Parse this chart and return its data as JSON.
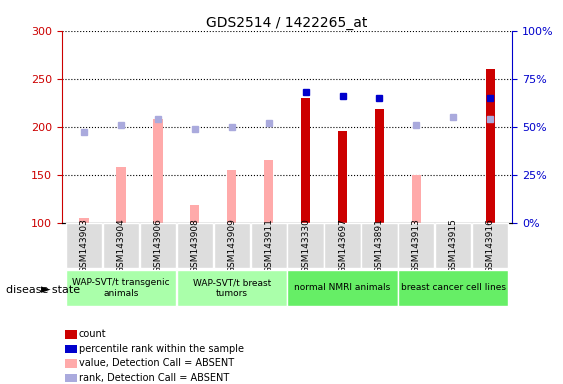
{
  "title": "GDS2514 / 1422265_at",
  "samples": [
    "GSM143903",
    "GSM143904",
    "GSM143906",
    "GSM143908",
    "GSM143909",
    "GSM143911",
    "GSM143330",
    "GSM143697",
    "GSM143891",
    "GSM143913",
    "GSM143915",
    "GSM143916"
  ],
  "count_values": [
    null,
    null,
    null,
    null,
    null,
    null,
    230,
    196,
    218,
    null,
    null,
    260
  ],
  "count_absent": [
    105,
    158,
    208,
    118,
    155,
    165,
    null,
    null,
    null,
    150,
    null,
    null
  ],
  "percentile_values": [
    null,
    null,
    null,
    null,
    null,
    null,
    68,
    66,
    65,
    null,
    null,
    65
  ],
  "percentile_absent": [
    47,
    51,
    54,
    49,
    50,
    52,
    null,
    null,
    null,
    51,
    55,
    54
  ],
  "group_spans": [
    {
      "label": "WAP-SVT/t transgenic\nanimals",
      "start": 0,
      "end": 2,
      "color": "#aaffaa"
    },
    {
      "label": "WAP-SVT/t breast\ntumors",
      "start": 3,
      "end": 5,
      "color": "#aaffaa"
    },
    {
      "label": "normal NMRI animals",
      "start": 6,
      "end": 8,
      "color": "#66ee66"
    },
    {
      "label": "breast cancer cell lines",
      "start": 9,
      "end": 11,
      "color": "#66ee66"
    }
  ],
  "ylim_left": [
    100,
    300
  ],
  "ylim_right": [
    0,
    100
  ],
  "yticks_left": [
    100,
    150,
    200,
    250,
    300
  ],
  "yticks_right": [
    0,
    25,
    50,
    75,
    100
  ],
  "color_count": "#cc0000",
  "color_percentile": "#0000cc",
  "color_absent_value": "#ffaaaa",
  "color_absent_rank": "#aaaadd",
  "bar_width": 0.25,
  "legend_items": [
    {
      "label": "count",
      "color": "#cc0000"
    },
    {
      "label": "percentile rank within the sample",
      "color": "#0000cc"
    },
    {
      "label": "value, Detection Call = ABSENT",
      "color": "#ffaaaa"
    },
    {
      "label": "rank, Detection Call = ABSENT",
      "color": "#aaaadd"
    }
  ]
}
